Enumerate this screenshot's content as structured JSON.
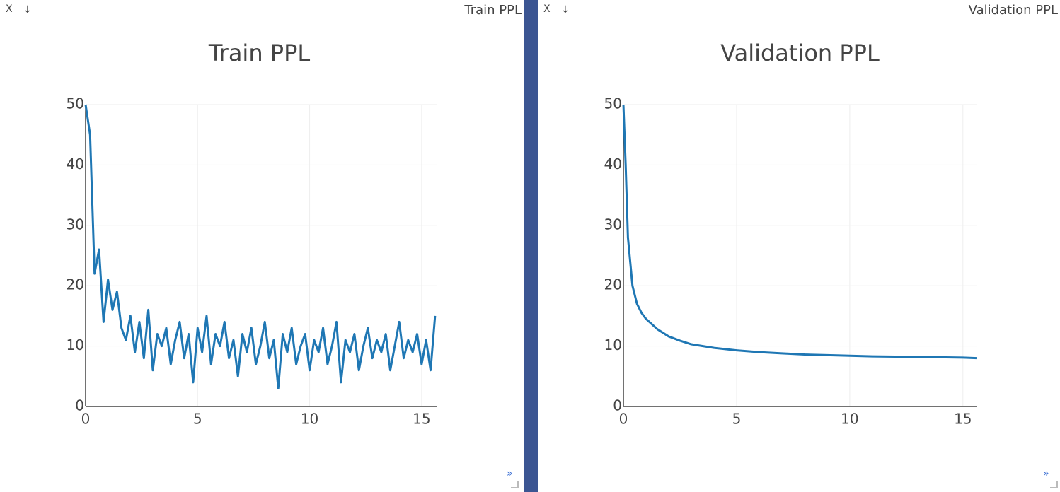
{
  "panes": [
    {
      "close": "X",
      "download": "↓",
      "title": "Train PPL",
      "expand": "»"
    },
    {
      "close": "X",
      "download": "↓",
      "title": "Validation PPL",
      "expand": "»"
    }
  ],
  "chart_data": [
    {
      "type": "line",
      "title": "Train PPL",
      "x": [
        0,
        0.2,
        0.4,
        0.6,
        0.8,
        1,
        1.2,
        1.4,
        1.6,
        1.8,
        2,
        2.2,
        2.4,
        2.6,
        2.8,
        3,
        3.2,
        3.4,
        3.6,
        3.8,
        4,
        4.2,
        4.4,
        4.6,
        4.8,
        5,
        5.2,
        5.4,
        5.6,
        5.8,
        6,
        6.2,
        6.4,
        6.6,
        6.8,
        7,
        7.2,
        7.4,
        7.6,
        7.8,
        8,
        8.2,
        8.4,
        8.6,
        8.8,
        9,
        9.2,
        9.4,
        9.6,
        9.8,
        10,
        10.2,
        10.4,
        10.6,
        10.8,
        11,
        11.2,
        11.4,
        11.6,
        11.8,
        12,
        12.2,
        12.4,
        12.6,
        12.8,
        13,
        13.2,
        13.4,
        13.6,
        13.8,
        14,
        14.2,
        14.4,
        14.6,
        14.8,
        15,
        15.2,
        15.4,
        15.6
      ],
      "series": [
        {
          "color": "#1f77b4",
          "values": [
            50,
            45,
            22,
            26,
            14,
            21,
            16,
            19,
            13,
            11,
            15,
            9,
            14,
            8,
            16,
            6,
            12,
            10,
            13,
            7,
            11,
            14,
            8,
            12,
            4,
            13,
            9,
            15,
            7,
            12,
            10,
            14,
            8,
            11,
            5,
            12,
            9,
            13,
            7,
            10,
            14,
            8,
            11,
            3,
            12,
            9,
            13,
            7,
            10,
            12,
            6,
            11,
            9,
            13,
            7,
            10,
            14,
            4,
            11,
            9,
            12,
            6,
            10,
            13,
            8,
            11,
            9,
            12,
            6,
            10,
            14,
            8,
            11,
            9,
            12,
            7,
            11,
            6,
            15
          ]
        }
      ],
      "xlim": [
        0,
        15.7
      ],
      "ylim": [
        0,
        50
      ],
      "xticks": [
        0,
        5,
        10,
        15
      ],
      "yticks": [
        0,
        10,
        20,
        30,
        40,
        50
      ],
      "grid": true
    },
    {
      "type": "line",
      "title": "Validation PPL",
      "x": [
        0,
        0.1,
        0.2,
        0.4,
        0.6,
        0.8,
        1,
        1.5,
        2,
        2.5,
        3,
        4,
        5,
        6,
        7,
        8,
        9,
        10,
        11,
        12,
        13,
        14,
        15,
        15.6
      ],
      "series": [
        {
          "color": "#1f77b4",
          "values": [
            50,
            40,
            28,
            20,
            17,
            15.5,
            14.5,
            12.8,
            11.6,
            10.9,
            10.3,
            9.7,
            9.3,
            9.0,
            8.8,
            8.6,
            8.5,
            8.4,
            8.3,
            8.25,
            8.2,
            8.15,
            8.1,
            8.0
          ]
        }
      ],
      "xlim": [
        0,
        15.6
      ],
      "ylim": [
        0,
        50
      ],
      "xticks": [
        0,
        5,
        10,
        15
      ],
      "yticks": [
        0,
        10,
        20,
        30,
        40,
        50
      ],
      "grid": true
    }
  ]
}
